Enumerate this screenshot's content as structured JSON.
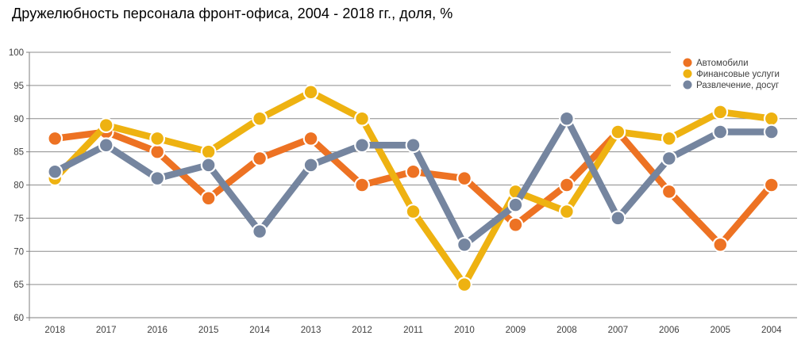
{
  "chart_data": {
    "type": "line",
    "title": "Дружелюбность персонала фронт-офиса, 2004 - 2018 гг., доля, %",
    "xlabel": "",
    "ylabel": "",
    "ylim": [
      60,
      100
    ],
    "yticks": [
      100,
      95,
      90,
      85,
      80,
      75,
      70,
      65,
      60
    ],
    "grid": true,
    "legend_position": "top-right",
    "categories": [
      "2018",
      "2017",
      "2016",
      "2015",
      "2014",
      "2013",
      "2012",
      "2011",
      "2010",
      "2009",
      "2008",
      "2007",
      "2006",
      "2005",
      "2004"
    ],
    "series": [
      {
        "name": "Автомобили",
        "id": "cars",
        "color": "#ED7223",
        "values": [
          87,
          88,
          85,
          78,
          84,
          87,
          80,
          82,
          81,
          74,
          80,
          88,
          79,
          71,
          80
        ]
      },
      {
        "name": "Финансовые услуги",
        "id": "finance",
        "color": "#EEB211",
        "values": [
          81,
          89,
          87,
          85,
          90,
          94,
          90,
          76,
          65,
          79,
          76,
          88,
          87,
          91,
          90
        ]
      },
      {
        "name": "Развлечение, досуг",
        "id": "leisure",
        "color": "#75859F",
        "values": [
          82,
          86,
          81,
          83,
          73,
          83,
          86,
          86,
          71,
          77,
          90,
          75,
          84,
          88,
          88
        ]
      }
    ]
  },
  "style": {
    "gridline_color": "#8C8C8C",
    "axis_color": "#7F7F7F",
    "tick_label_color": "#404040",
    "legend_text_color": "#3F3F3F",
    "background": "#FFFFFF"
  }
}
